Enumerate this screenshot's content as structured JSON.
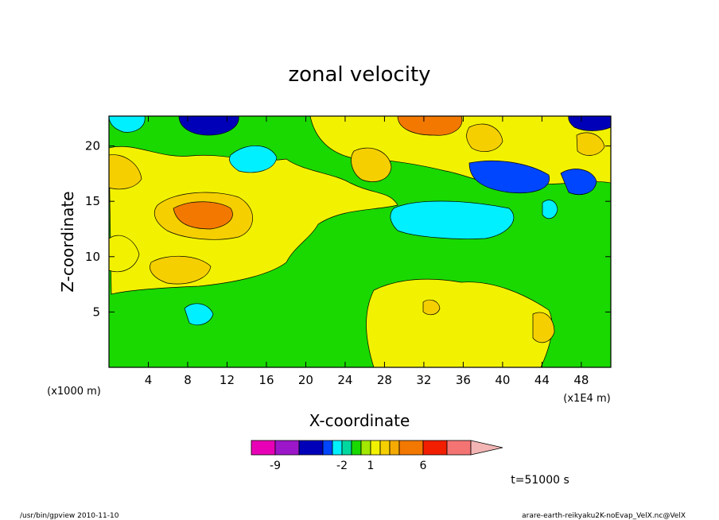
{
  "chart_data": {
    "type": "heatmap",
    "title": "zonal velocity",
    "xlabel": "X-coordinate",
    "ylabel": "Z-coordinate",
    "x_scale_note": "(x1E4 m)",
    "y_scale_note": "(x1000 m)",
    "xlim": [
      0,
      51
    ],
    "ylim": [
      0,
      22.7
    ],
    "x_ticks": [
      "4",
      "8",
      "12",
      "16",
      "20",
      "24",
      "28",
      "32",
      "36",
      "40",
      "44",
      "48"
    ],
    "y_ticks": [
      "5",
      "10",
      "15",
      "20"
    ],
    "colorbar": {
      "labels": [
        {
          "text": "-9",
          "level": 1
        },
        {
          "text": "-2",
          "level": 5
        },
        {
          "text": "1",
          "level": 8
        },
        {
          "text": "6",
          "level": 12
        }
      ],
      "colors": [
        "#e800b6",
        "#9b17c9",
        "#0000b8",
        "#0046ff",
        "#00f0ff",
        "#00d8a0",
        "#19d900",
        "#a2e800",
        "#f2f200",
        "#f5cf00",
        "#f4aa00",
        "#f37800",
        "#f21e00",
        "#f47474",
        "#f3b4b4"
      ]
    },
    "time_label": "t=51000 s",
    "grid": false,
    "legend": "colorbar-bottom"
  },
  "footer": {
    "left": "/usr/bin/gpview  2010-11-10",
    "right": "arare-earth-reikyaku2K-noEvap_VelX.nc@VelX"
  }
}
